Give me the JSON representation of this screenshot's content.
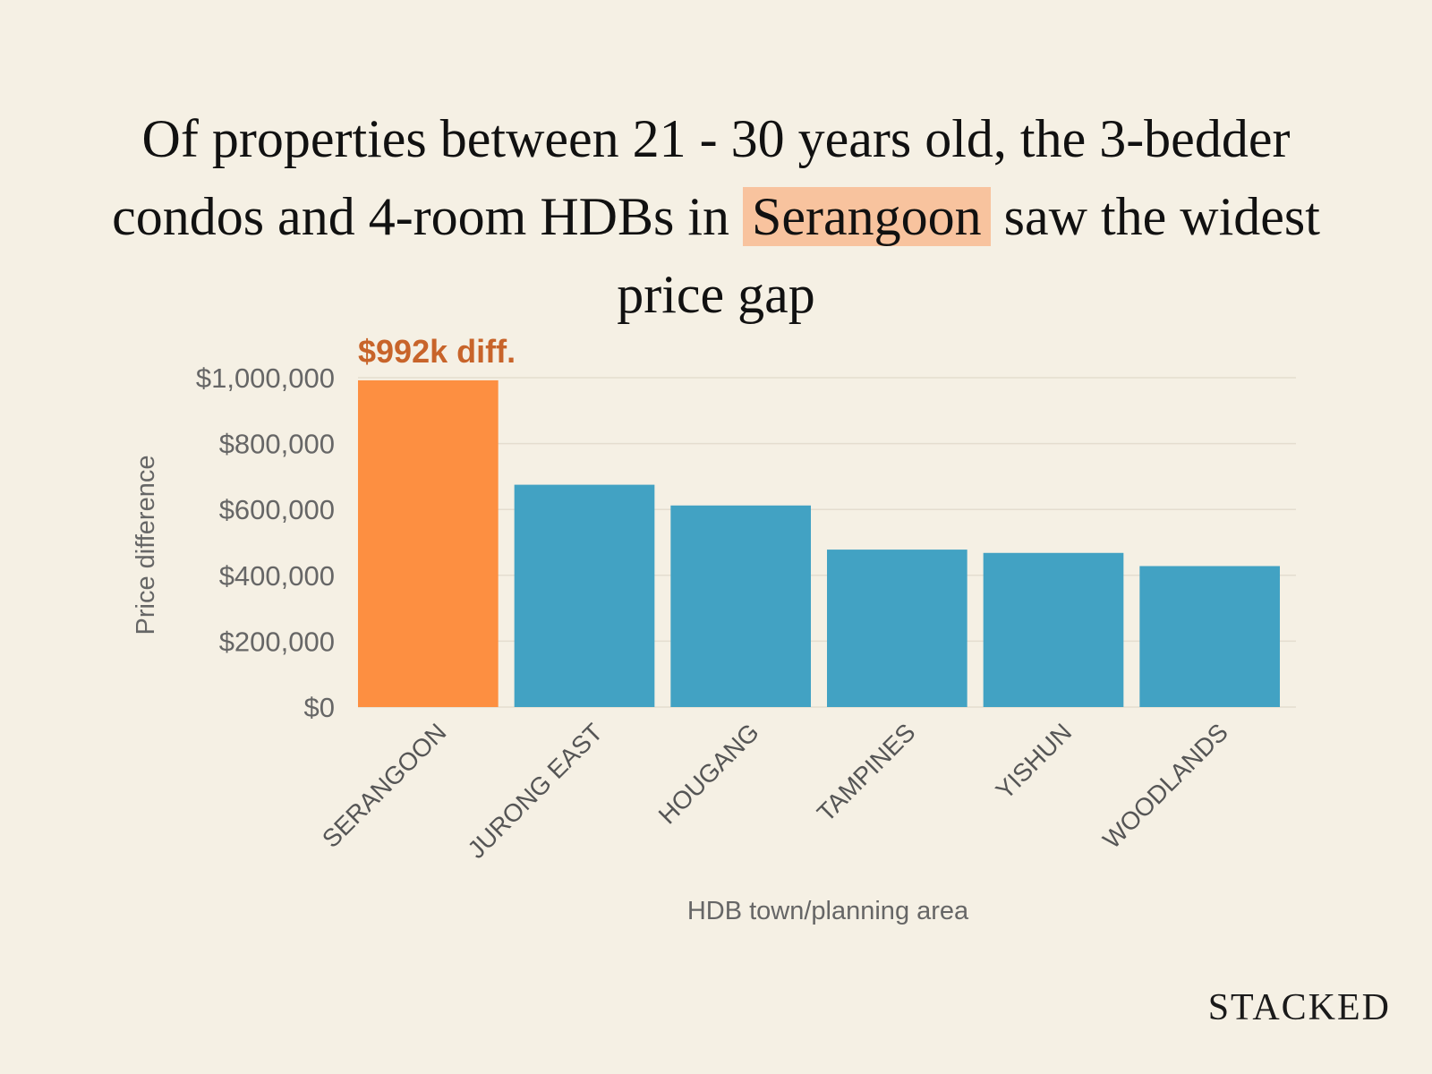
{
  "title": {
    "before": "Of properties between 21 - 30 years old, the 3-bedder condos and 4-room HDBs in ",
    "highlight": "Serangoon",
    "after": " saw the widest price gap"
  },
  "brand": "STACKED",
  "colors": {
    "background": "#f5f0e4",
    "highlight_bar": "#fd8f41",
    "bar": "#42a2c3",
    "annotation": "#c8642a",
    "title_highlight": "#f8c39e",
    "gridline": "#e4ddcf"
  },
  "chart_data": {
    "type": "bar",
    "categories": [
      "SERANGOON",
      "JURONG EAST",
      "HOUGANG",
      "TAMPINES",
      "YISHUN",
      "WOODLANDS"
    ],
    "values": [
      992000,
      675000,
      612000,
      478000,
      468000,
      428000
    ],
    "highlight_index": 0,
    "xlabel": "HDB town/planning area",
    "ylabel": "Price difference",
    "ylim": [
      0,
      1000000
    ],
    "yticks": [
      0,
      200000,
      400000,
      600000,
      800000,
      1000000
    ],
    "ytick_labels": [
      "$0",
      "$200,000",
      "$400,000",
      "$600,000",
      "$800,000",
      "$1,000,000"
    ],
    "annotation": "$992k diff.",
    "grid": true,
    "legend": "none"
  }
}
